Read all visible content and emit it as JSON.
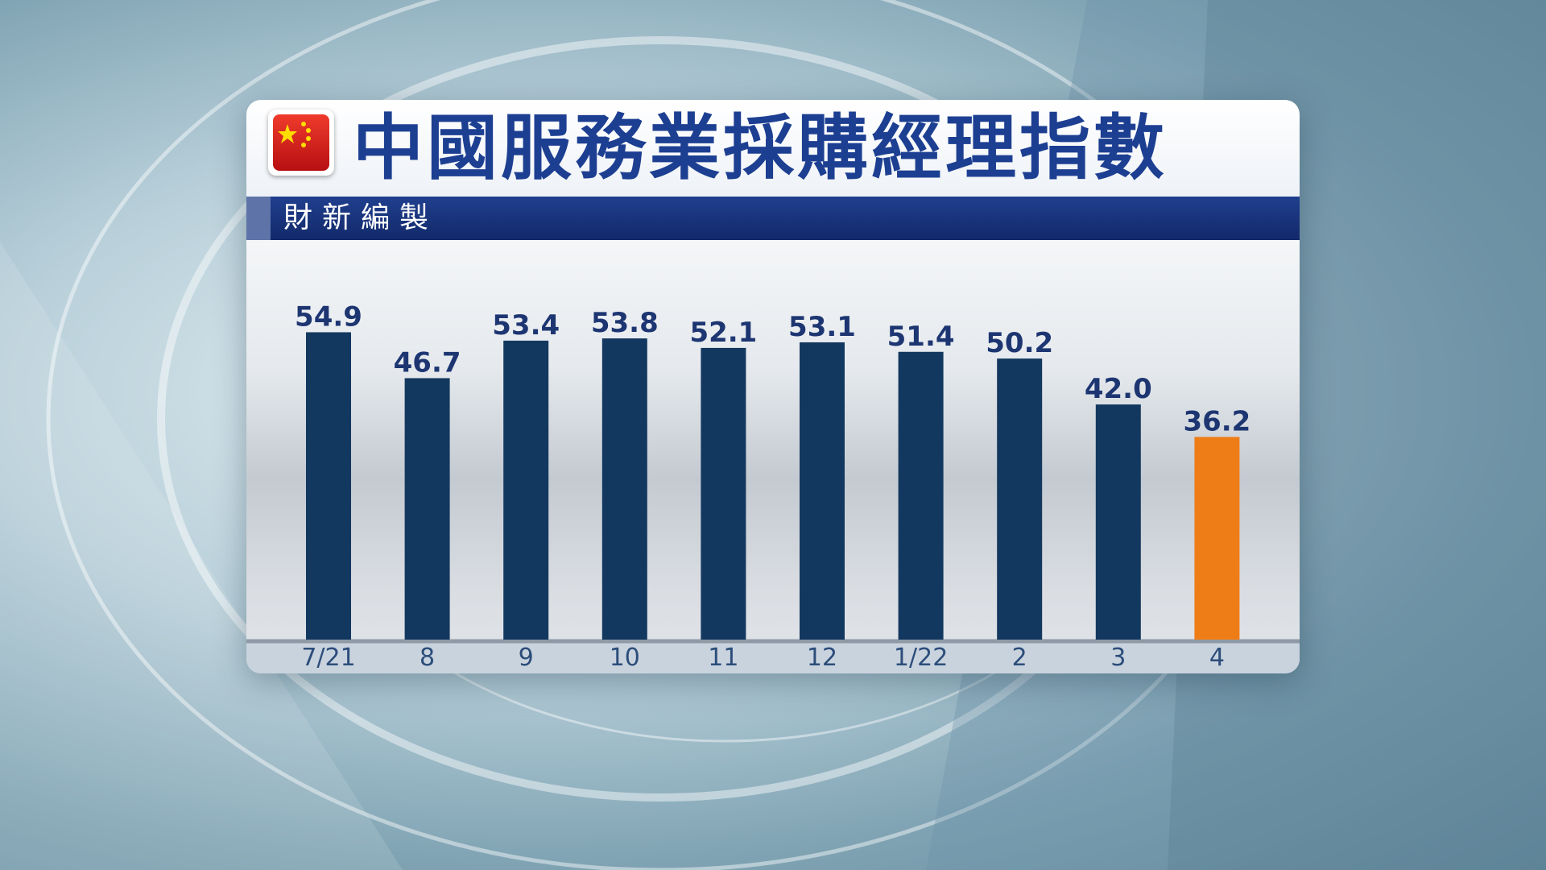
{
  "header": {
    "title": "中國服務業採購經理指數",
    "subtitle": "財新編製",
    "flag_icon": "china-flag-icon"
  },
  "colors": {
    "bar": "#13385f",
    "highlight_bar": "#ef7d17",
    "title": "#1d3f92",
    "subtitle_bar": "#1a3680"
  },
  "chart_data": {
    "type": "bar",
    "categories": [
      "7/21",
      "8",
      "9",
      "10",
      "11",
      "12",
      "1/22",
      "2",
      "3",
      "4"
    ],
    "values": [
      54.9,
      46.7,
      53.4,
      53.8,
      52.1,
      53.1,
      51.4,
      50.2,
      42.0,
      36.2
    ],
    "value_labels": [
      "54.9",
      "46.7",
      "53.4",
      "53.8",
      "52.1",
      "53.1",
      "51.4",
      "50.2",
      "42.0",
      "36.2"
    ],
    "highlight_index": 9,
    "title": "中國服務業採購經理指數",
    "xlabel": "",
    "ylabel": "",
    "ylim": [
      0,
      55
    ],
    "grid": false,
    "legend": "none"
  }
}
